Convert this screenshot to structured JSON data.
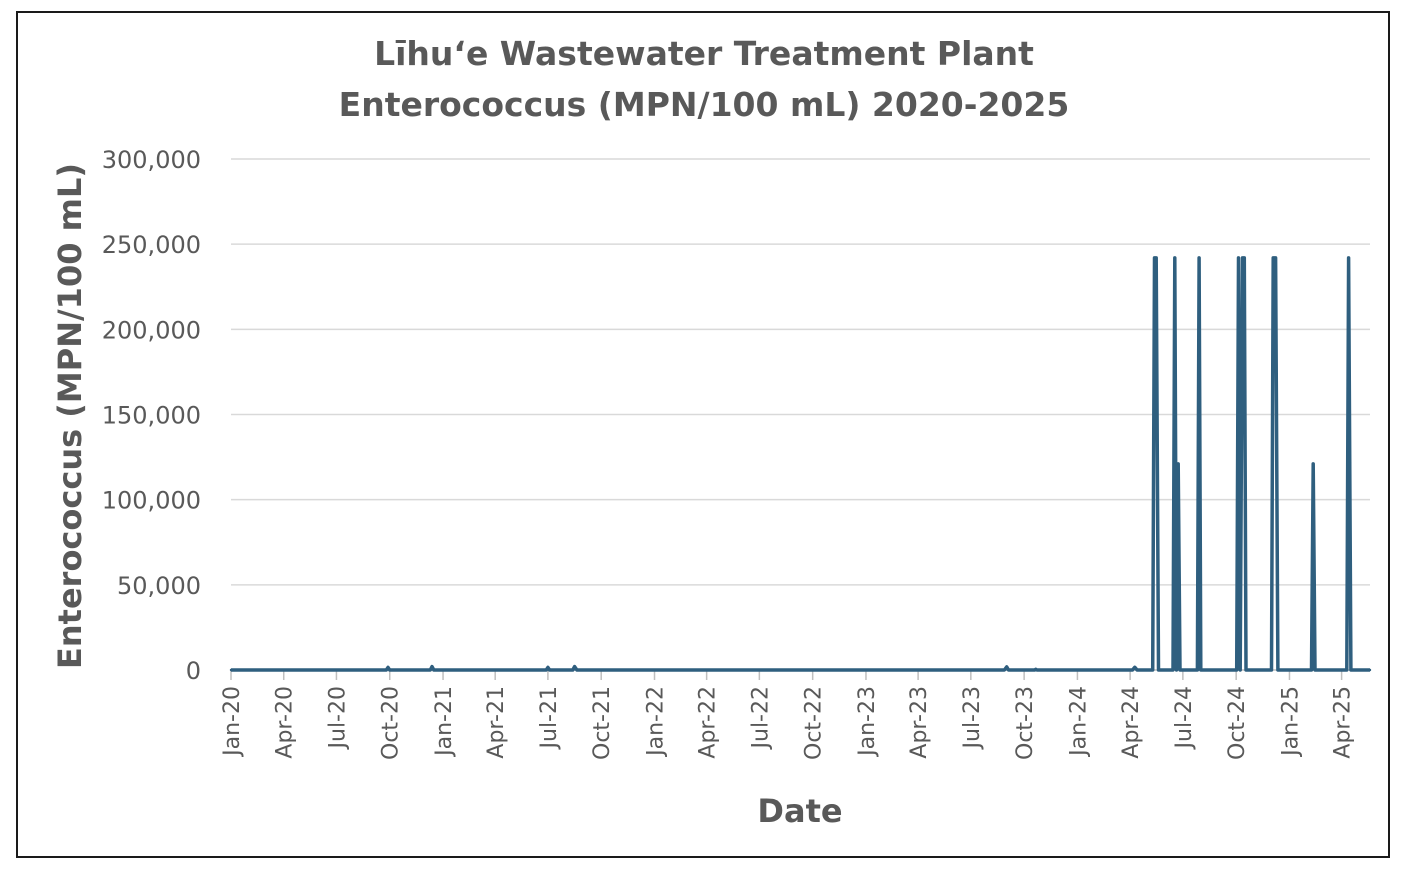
{
  "chart_data": {
    "type": "line",
    "title_line1": "Līhuʻe Wastewater Treatment Plant",
    "title_line2": "Enterococcus (MPN/100 mL) 2020-2025",
    "xlabel": "Date",
    "ylabel": "Enterococcus (MPN/100 mL)",
    "ylim": [
      0,
      300000
    ],
    "yticks": [
      0,
      50000,
      100000,
      150000,
      200000,
      250000,
      300000
    ],
    "ytick_labels": [
      "0",
      "50,000",
      "100,000",
      "150,000",
      "200,000",
      "250,000",
      "300,000"
    ],
    "xlim": [
      "2020-01-01",
      "2025-05-20"
    ],
    "xticks": [
      "2020-01-01",
      "2020-04-01",
      "2020-07-01",
      "2020-10-01",
      "2021-01-01",
      "2021-04-01",
      "2021-07-01",
      "2021-10-01",
      "2022-01-01",
      "2022-04-01",
      "2022-07-01",
      "2022-10-01",
      "2023-01-01",
      "2023-04-01",
      "2023-07-01",
      "2023-10-01",
      "2024-01-01",
      "2024-04-01",
      "2024-07-01",
      "2024-10-01",
      "2025-01-01",
      "2025-04-01"
    ],
    "xtick_labels": [
      "Jan-20",
      "Apr-20",
      "Jul-20",
      "Oct-20",
      "Jan-21",
      "Apr-21",
      "Jul-21",
      "Oct-21",
      "Jan-22",
      "Apr-22",
      "Jul-22",
      "Oct-22",
      "Jan-23",
      "Apr-23",
      "Jul-23",
      "Oct-23",
      "Jan-24",
      "Apr-24",
      "Jul-24",
      "Oct-24",
      "Jan-25",
      "Apr-25"
    ],
    "grid": true,
    "legend": "none",
    "line_color": "#2f5f7f",
    "gridline_color": "#d9d9d9",
    "series": [
      {
        "x": [
          "2020-01-01",
          "2020-09-25",
          "2020-09-28",
          "2020-10-01",
          "2020-12-10",
          "2020-12-13",
          "2020-12-16",
          "2021-06-28",
          "2021-07-01",
          "2021-07-04",
          "2021-08-13",
          "2021-08-16",
          "2021-08-20",
          "2023-08-28",
          "2023-09-01",
          "2023-09-04",
          "2023-10-19",
          "2023-10-21",
          "2023-10-23",
          "2024-04-05",
          "2024-04-09",
          "2024-04-13",
          "2024-05-10",
          "2024-05-13",
          "2024-05-16",
          "2024-05-20",
          "2024-05-27",
          "2024-06-14",
          "2024-06-17",
          "2024-06-20",
          "2024-06-23",
          "2024-06-26",
          "2024-07-26",
          "2024-07-29",
          "2024-08-01",
          "2024-10-02",
          "2024-10-05",
          "2024-10-08",
          "2024-10-12",
          "2024-10-15",
          "2024-10-18",
          "2024-10-22",
          "2024-12-01",
          "2024-12-04",
          "2024-12-08",
          "2024-12-12",
          "2024-12-15",
          "2025-02-08",
          "2025-02-11",
          "2025-02-14",
          "2025-04-10",
          "2025-04-13",
          "2025-04-17",
          "2025-05-20"
        ],
        "y": [
          0,
          0,
          1500,
          0,
          0,
          2000,
          0,
          0,
          1500,
          0,
          0,
          2000,
          0,
          0,
          1800,
          0,
          0,
          400,
          0,
          0,
          1600,
          0,
          0,
          241960,
          241960,
          0,
          0,
          0,
          241960,
          0,
          120980,
          0,
          0,
          241960,
          0,
          0,
          241960,
          0,
          241960,
          241960,
          0,
          0,
          0,
          241960,
          241960,
          0,
          0,
          0,
          120980,
          0,
          0,
          241960,
          0,
          0
        ]
      }
    ]
  }
}
